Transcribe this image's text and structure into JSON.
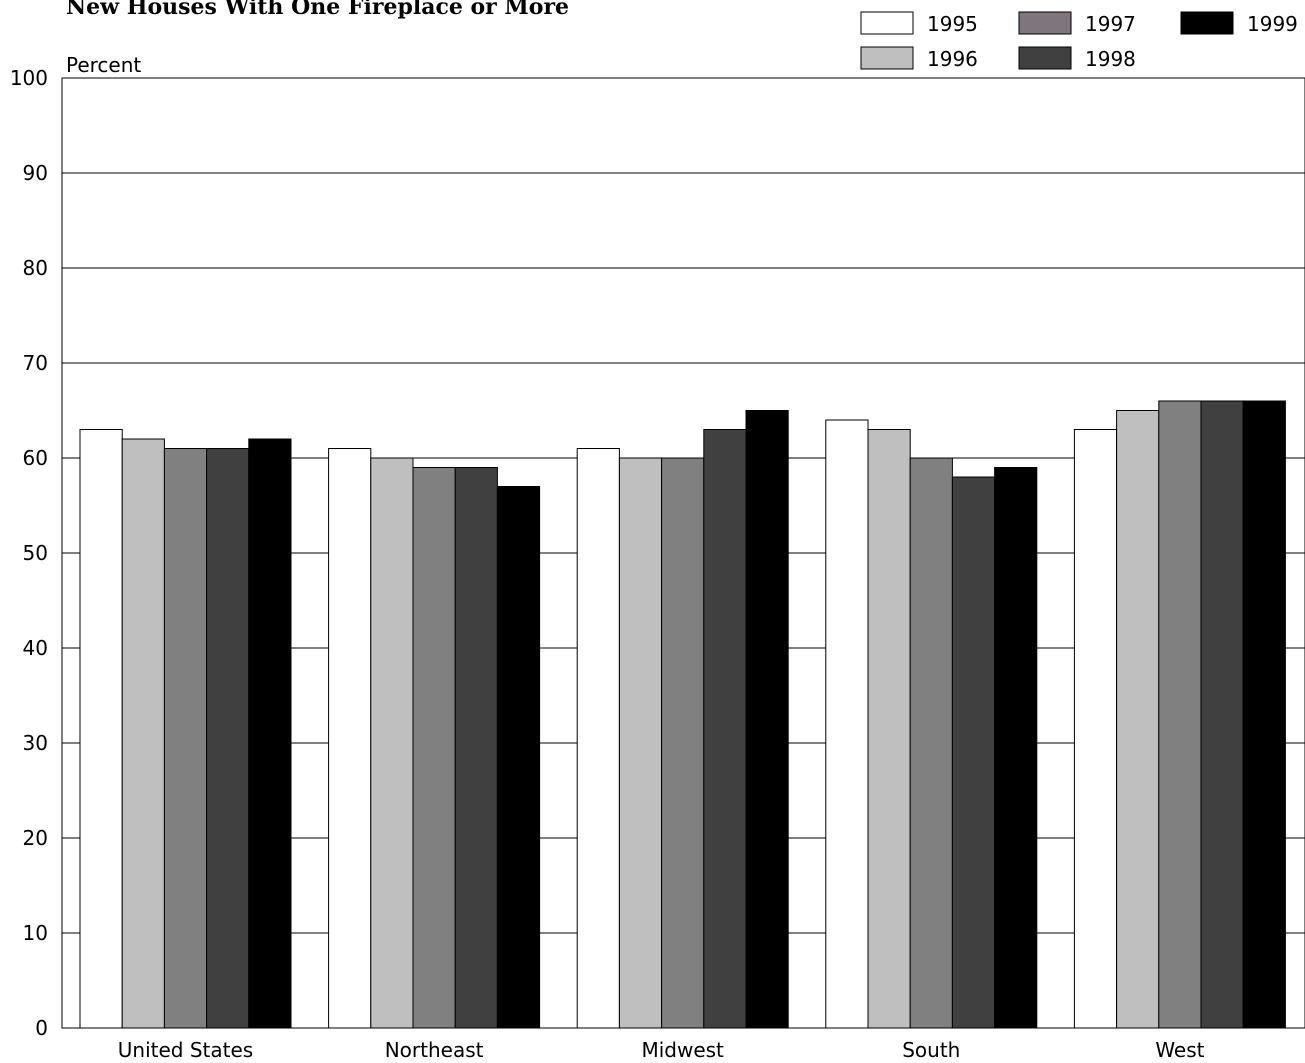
{
  "chart_data": {
    "type": "bar",
    "title": "New Houses With One Fireplace or More",
    "ylabel": "Percent",
    "xlabel": "",
    "ylim": [
      0,
      100
    ],
    "yticks": [
      0,
      10,
      20,
      30,
      40,
      50,
      60,
      70,
      80,
      90,
      100
    ],
    "grid": true,
    "legend_position": "top-right",
    "categories": [
      "United States",
      "Northeast",
      "Midwest",
      "South",
      "West"
    ],
    "series": [
      {
        "name": "1995",
        "color": "#ffffff",
        "values": [
          63,
          61,
          61,
          64,
          63
        ]
      },
      {
        "name": "1996",
        "color": "#bfbfbf",
        "values": [
          62,
          60,
          60,
          63,
          65
        ]
      },
      {
        "name": "1997",
        "color": "#808080",
        "values": [
          61,
          59,
          60,
          60,
          66
        ]
      },
      {
        "name": "1998",
        "color": "#404040",
        "values": [
          61,
          59,
          63,
          58,
          66
        ]
      },
      {
        "name": "1999",
        "color": "#000000",
        "values": [
          62,
          57,
          65,
          59,
          66
        ]
      }
    ],
    "legend_swatch_colors": {
      "1997": "#7f757c"
    }
  }
}
